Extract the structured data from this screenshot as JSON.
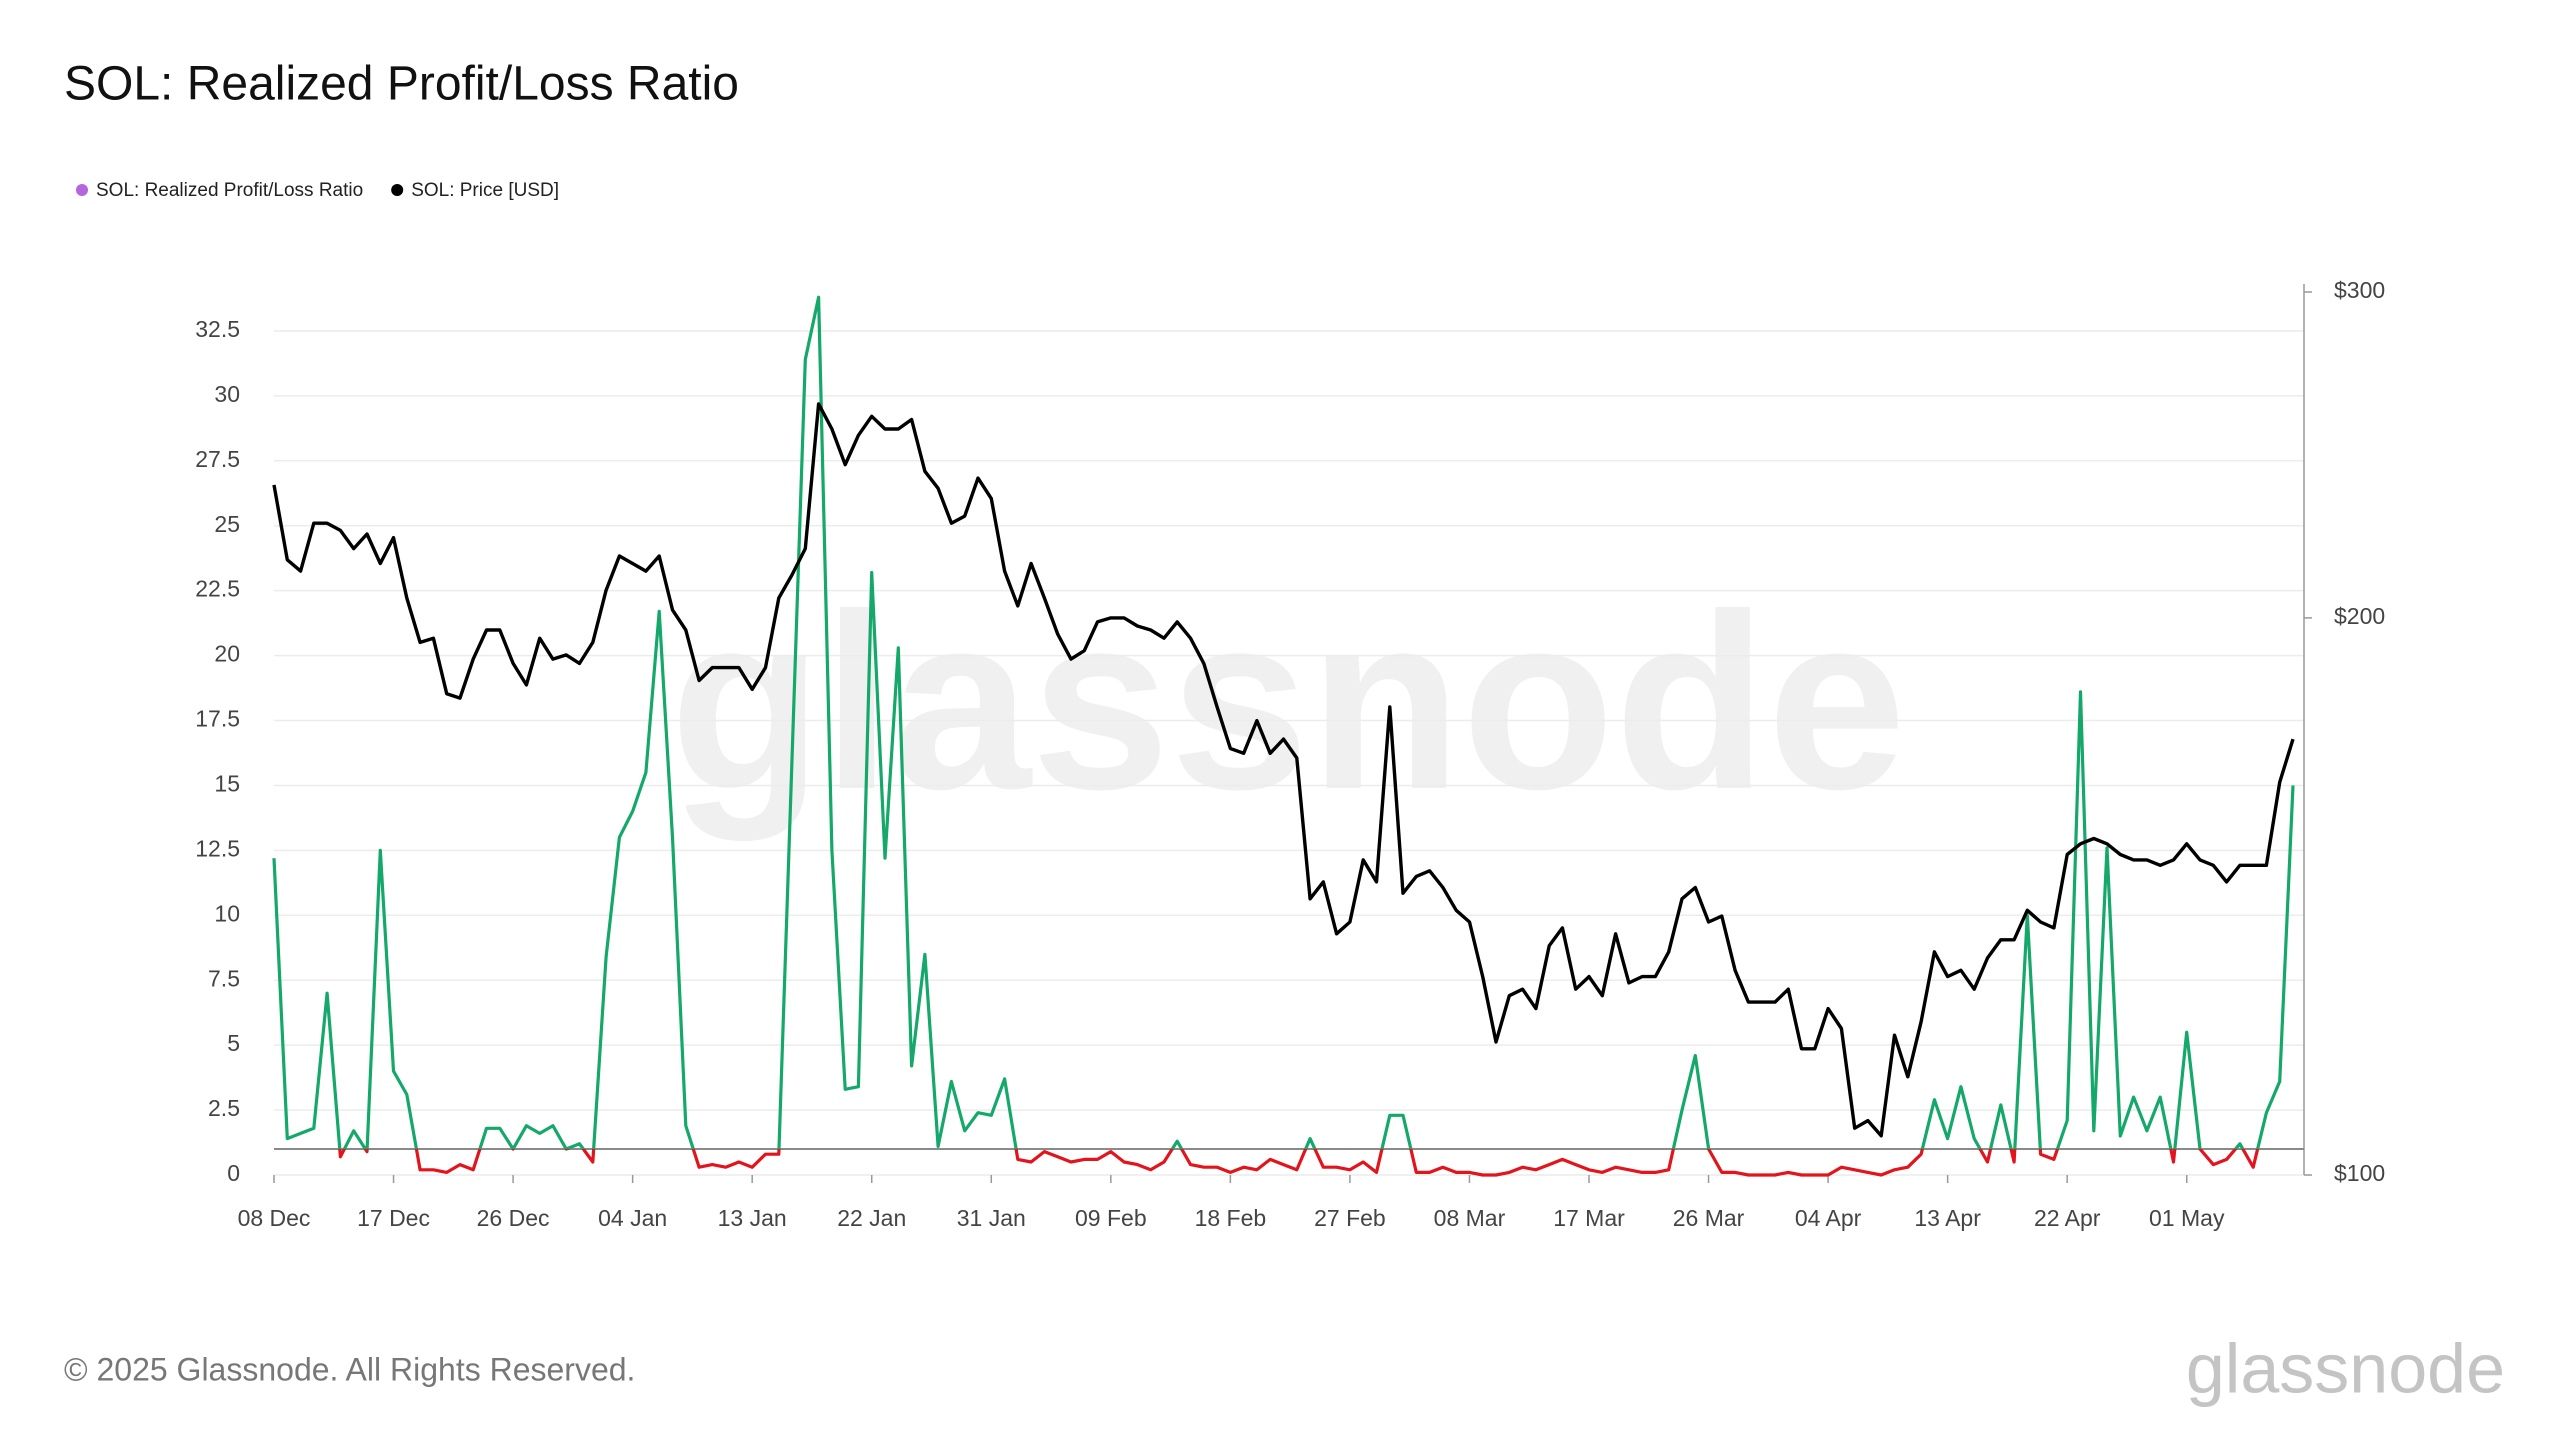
{
  "chart_data": {
    "type": "line",
    "title": "SOL: Realized Profit/Loss Ratio",
    "watermark": "glassnode",
    "footer": "© 2025 Glassnode. All Rights Reserved.",
    "logo": "glassnode",
    "legend": "top-left",
    "grid": true,
    "threshold": 1,
    "categories": [
      "08 Dec",
      null,
      null,
      null,
      null,
      null,
      null,
      null,
      null,
      "17 Dec",
      null,
      null,
      null,
      null,
      null,
      null,
      null,
      null,
      "26 Dec",
      null,
      null,
      null,
      null,
      null,
      null,
      null,
      null,
      "04 Jan",
      null,
      null,
      null,
      null,
      null,
      null,
      null,
      null,
      "13 Jan",
      null,
      null,
      null,
      null,
      null,
      null,
      null,
      null,
      "22 Jan",
      null,
      null,
      null,
      null,
      null,
      null,
      null,
      null,
      "31 Jan",
      null,
      null,
      null,
      null,
      null,
      null,
      null,
      null,
      "09 Feb",
      null,
      null,
      null,
      null,
      null,
      null,
      null,
      null,
      "18 Feb",
      null,
      null,
      null,
      null,
      null,
      null,
      null,
      null,
      "27 Feb",
      null,
      null,
      null,
      null,
      null,
      null,
      null,
      null,
      "08 Mar",
      null,
      null,
      null,
      null,
      null,
      null,
      null,
      null,
      "17 Mar",
      null,
      null,
      null,
      null,
      null,
      null,
      null,
      null,
      "26 Mar",
      null,
      null,
      null,
      null,
      null,
      null,
      null,
      null,
      "04 Apr",
      null,
      null,
      null,
      null,
      null,
      null,
      null,
      null,
      "13 Apr",
      null,
      null,
      null,
      null,
      null,
      null,
      null,
      null,
      "22 Apr",
      null,
      null,
      null,
      null,
      null,
      null,
      null,
      null,
      "01 May",
      null,
      null,
      null,
      null,
      null,
      null,
      null,
      null
    ],
    "ylim": [
      0,
      34
    ],
    "yticks": [
      0,
      2.5,
      5,
      7.5,
      10,
      12.5,
      15,
      17.5,
      20,
      22.5,
      25,
      27.5,
      30,
      32.5
    ],
    "y2lim": [
      100,
      300
    ],
    "y2log": true,
    "y2ticks": [
      {
        "value": 100,
        "label": "$100"
      },
      {
        "value": 200,
        "label": "$200"
      },
      {
        "value": 300,
        "label": "$300"
      }
    ],
    "series": [
      {
        "name": "SOL: Realized Profit/Loss Ratio",
        "color": "#b565e0",
        "above_color": "#14a86b",
        "below_color": "#e3141b",
        "values": [
          12.2,
          1.4,
          1.6,
          1.8,
          7.0,
          0.7,
          1.7,
          0.9,
          12.5,
          4.0,
          3.1,
          0.2,
          0.2,
          0.1,
          0.4,
          0.2,
          1.8,
          1.8,
          1.0,
          1.9,
          1.6,
          1.9,
          1.0,
          1.2,
          0.5,
          8.4,
          13.0,
          14.0,
          15.5,
          21.7,
          13.0,
          1.9,
          0.3,
          0.4,
          0.3,
          0.5,
          0.3,
          0.8,
          0.8,
          16.0,
          31.4,
          33.8,
          12.5,
          3.3,
          3.4,
          23.2,
          12.2,
          20.3,
          4.2,
          8.5,
          1.1,
          3.6,
          1.7,
          2.4,
          2.3,
          3.7,
          0.6,
          0.5,
          0.9,
          0.7,
          0.5,
          0.6,
          0.6,
          0.9,
          0.5,
          0.4,
          0.2,
          0.5,
          1.3,
          0.4,
          0.3,
          0.3,
          0.1,
          0.3,
          0.2,
          0.6,
          0.4,
          0.2,
          1.4,
          0.3,
          0.3,
          0.2,
          0.5,
          0.1,
          2.3,
          2.3,
          0.1,
          0.1,
          0.3,
          0.1,
          0.1,
          0.0,
          0.0,
          0.1,
          0.3,
          0.2,
          0.4,
          0.6,
          0.4,
          0.2,
          0.1,
          0.3,
          0.2,
          0.1,
          0.1,
          0.2,
          2.5,
          4.6,
          1.0,
          0.1,
          0.1,
          0.0,
          0.0,
          0.0,
          0.1,
          0.0,
          0.0,
          0.0,
          0.3,
          0.2,
          0.1,
          0.0,
          0.2,
          0.3,
          0.8,
          2.9,
          1.4,
          3.4,
          1.4,
          0.5,
          2.7,
          0.5,
          10.0,
          0.8,
          0.6,
          2.1,
          18.6,
          1.7,
          12.6,
          1.5,
          3.0,
          1.7,
          3.0,
          0.5,
          5.5,
          1.0,
          0.4,
          0.6,
          1.2,
          0.3,
          2.4,
          3.6,
          15.0
        ]
      },
      {
        "name": "SOL: Price [USD]",
        "color": "#000000",
        "axis": "y2",
        "values": [
          236,
          215,
          212,
          225,
          225,
          223,
          218,
          222,
          214,
          221,
          205,
          194,
          195,
          182,
          181,
          190,
          197,
          197,
          189,
          184,
          195,
          190,
          191,
          189,
          194,
          207,
          216,
          214,
          212,
          216,
          202,
          197,
          185,
          188,
          188,
          188,
          183,
          188,
          205,
          211,
          218,
          261,
          253,
          242,
          251,
          257,
          253,
          253,
          256,
          240,
          235,
          225,
          227,
          238,
          232,
          212,
          203,
          214,
          205,
          196,
          190,
          192,
          199,
          200,
          200,
          198,
          197,
          195,
          199,
          195,
          189,
          179,
          170,
          169,
          176,
          169,
          172,
          168,
          141,
          144,
          135,
          137,
          148,
          144,
          179,
          142,
          145,
          146,
          143,
          139,
          137,
          128,
          118,
          125,
          126,
          123,
          133,
          136,
          126,
          128,
          125,
          135,
          127,
          128,
          128,
          132,
          141,
          143,
          137,
          138,
          129,
          124,
          124,
          124,
          126,
          117,
          117,
          123,
          120,
          106,
          107,
          105,
          119,
          113,
          121,
          132,
          128,
          129,
          126,
          131,
          134,
          134,
          139,
          137,
          136,
          149,
          151,
          152,
          151,
          149,
          148,
          148,
          147,
          148,
          151,
          148,
          147,
          144,
          147,
          147,
          147,
          163,
          172
        ]
      }
    ]
  }
}
